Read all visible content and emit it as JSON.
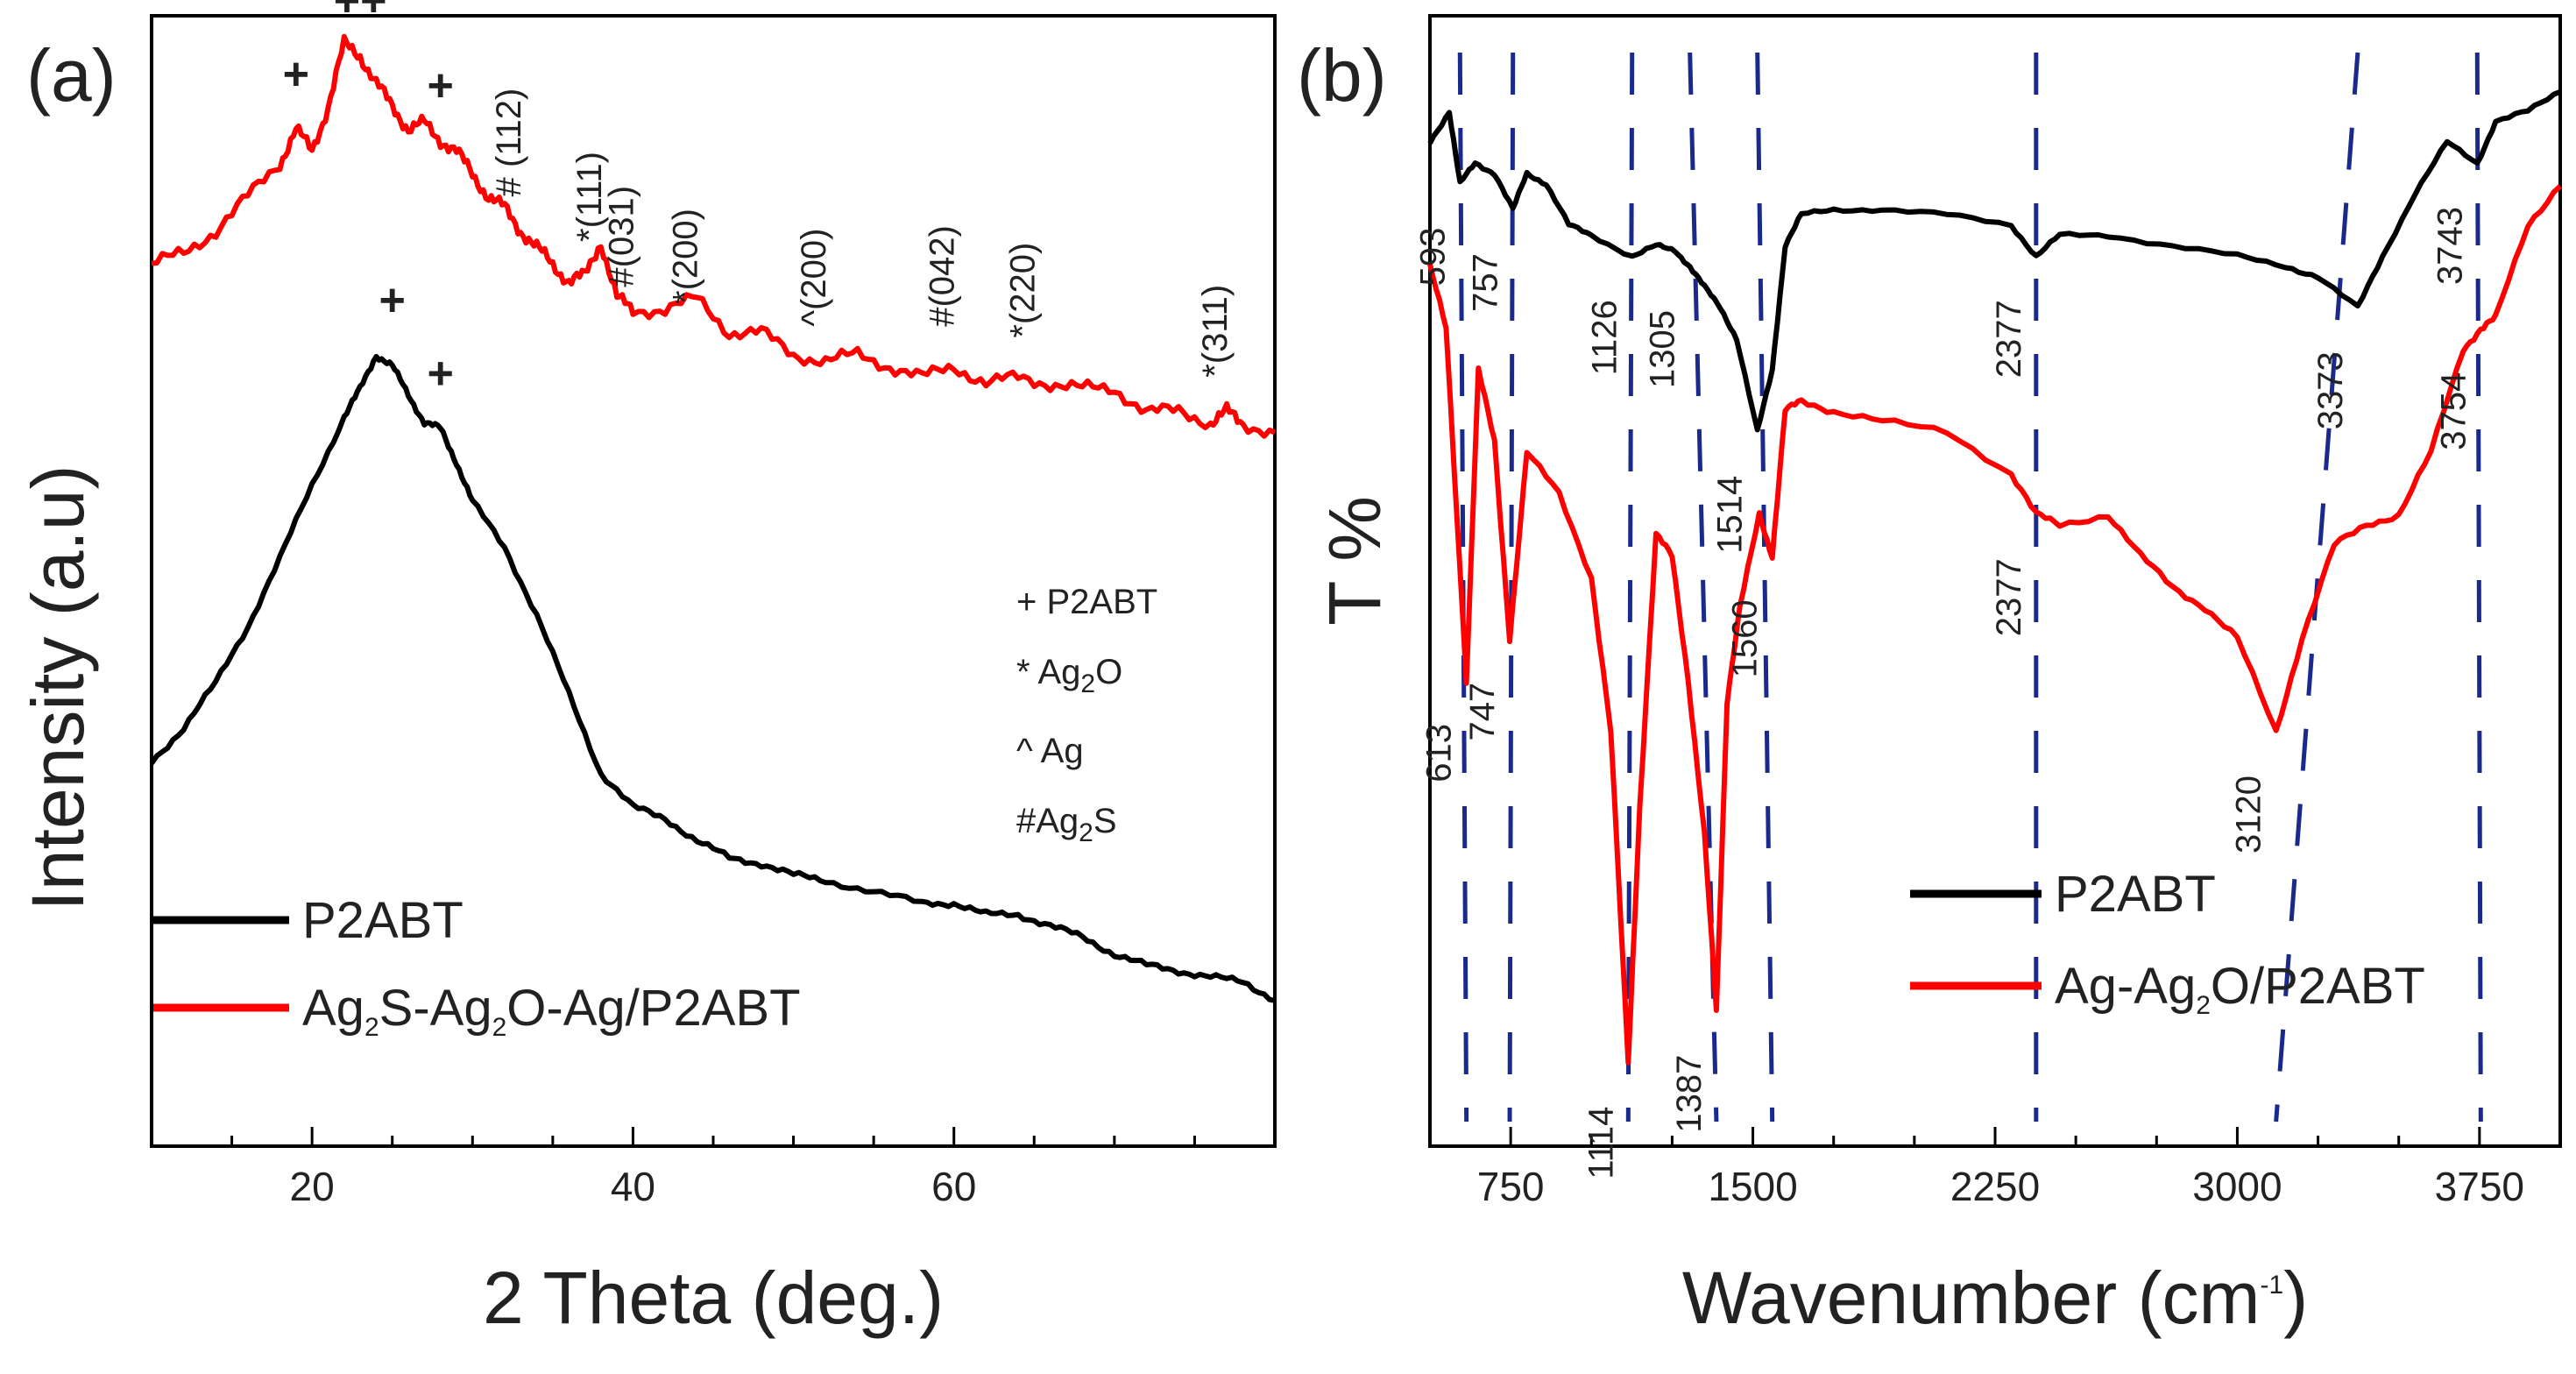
{
  "panels": [
    {
      "id": "a",
      "panel_label": "(a)",
      "chart_data": {
        "type": "line",
        "title": "",
        "xlabel": "2 Theta (deg.)",
        "ylabel": "Intensity (a.u)",
        "xlim": [
          10,
          80
        ],
        "ylim": [
          0,
          1
        ],
        "x_ticks": [
          20,
          40,
          60
        ],
        "y_ticks_visible": false,
        "grid": false,
        "legend_position": "bottom-left",
        "series": [
          {
            "name": "P2ABT",
            "color": "#000000",
            "x": [
              10,
              12,
              14,
              16,
              18,
              20,
              22,
              23,
              24,
              25,
              26,
              27,
              28,
              29,
              30,
              32,
              34,
              36,
              38,
              40,
              42,
              44,
              46,
              48,
              50,
              52,
              55,
              58,
              60,
              62,
              64,
              66,
              68,
              70,
              72,
              74,
              76,
              78,
              80
            ],
            "y": [
              0.34,
              0.37,
              0.41,
              0.46,
              0.52,
              0.585,
              0.645,
              0.67,
              0.7,
              0.69,
              0.665,
              0.64,
              0.635,
              0.605,
              0.57,
              0.53,
              0.47,
              0.4,
              0.33,
              0.3,
              0.29,
              0.27,
              0.255,
              0.25,
              0.24,
              0.235,
              0.225,
              0.215,
              0.215,
              0.205,
              0.205,
              0.195,
              0.185,
              0.17,
              0.16,
              0.155,
              0.15,
              0.145,
              0.13
            ],
            "legend_label": "P2ABT"
          },
          {
            "name": "Ag2S-Ag2O-Ag/P2ABT",
            "color": "#ff0000",
            "x": [
              10,
              12,
              14,
              16,
              18,
              19,
              20,
              21,
              22,
              23,
              24,
              25,
              26,
              27,
              28,
              29,
              30,
              31,
              32,
              33,
              34,
              35,
              36,
              37,
              38,
              39,
              40,
              42,
              44,
              46,
              48,
              50,
              52,
              54,
              56,
              58,
              60,
              62,
              64,
              66,
              68,
              70,
              72,
              74,
              76,
              77,
              78,
              80
            ],
            "y": [
              0.78,
              0.79,
              0.81,
              0.84,
              0.87,
              0.9,
              0.88,
              0.92,
              0.975,
              0.965,
              0.94,
              0.92,
              0.9,
              0.905,
              0.89,
              0.88,
              0.86,
              0.84,
              0.83,
              0.81,
              0.795,
              0.78,
              0.765,
              0.77,
              0.8,
              0.75,
              0.74,
              0.74,
              0.75,
              0.72,
              0.72,
              0.7,
              0.695,
              0.7,
              0.69,
              0.68,
              0.69,
              0.675,
              0.68,
              0.675,
              0.67,
              0.67,
              0.65,
              0.65,
              0.64,
              0.65,
              0.64,
              0.63
            ],
            "legend_label": "Ag2S-Ag2O-Ag/P2ABT"
          }
        ],
        "annotations": [
          {
            "text": "+",
            "x": 19,
            "y": 0.935
          },
          {
            "text": "++",
            "x": 23,
            "y": 1.0
          },
          {
            "text": "+",
            "x": 28,
            "y": 0.925
          },
          {
            "text": "+",
            "x": 25,
            "y": 0.735
          },
          {
            "text": "+",
            "x": 28,
            "y": 0.67
          },
          {
            "text": "# (112)",
            "x": 33,
            "y": 0.84
          },
          {
            "text": "*(111)",
            "x": 38,
            "y": 0.8
          },
          {
            "text": "#(031)",
            "x": 40,
            "y": 0.76
          },
          {
            "text": "*(200)",
            "x": 44,
            "y": 0.745
          },
          {
            "text": "^(200)",
            "x": 52,
            "y": 0.725
          },
          {
            "text": "#(042)",
            "x": 60,
            "y": 0.725
          },
          {
            "text": "*(220)",
            "x": 65,
            "y": 0.715
          },
          {
            "text": "*(311)",
            "x": 77,
            "y": 0.68
          }
        ],
        "key": [
          "+ P2ABT",
          "* Ag2O",
          "^ Ag",
          "#Ag2S"
        ]
      }
    },
    {
      "id": "b",
      "panel_label": "(b)",
      "chart_data": {
        "type": "line",
        "title": "",
        "xlabel": "Wavenumber (cm-1)",
        "ylabel": "T %",
        "xlim": [
          500,
          4000
        ],
        "ylim": [
          0,
          1
        ],
        "x_ticks": [
          750,
          1500,
          2250,
          3000,
          3750
        ],
        "y_ticks_visible": false,
        "grid": false,
        "legend_position": "bottom-right",
        "series": [
          {
            "name": "P2ABT",
            "color": "#000000",
            "x": [
              500,
              560,
              593,
              640,
              700,
              757,
              800,
              860,
              930,
              1000,
              1126,
              1200,
              1260,
              1305,
              1350,
              1400,
              1450,
              1514,
              1560,
              1600,
              1650,
              1750,
              1900,
              2100,
              2300,
              2377,
              2450,
              2600,
              2800,
              3000,
              3150,
              3250,
              3373,
              3450,
              3550,
              3650,
              3743,
              3800,
              3900,
              4000
            ],
            "y": [
              0.92,
              0.95,
              0.88,
              0.9,
              0.89,
              0.855,
              0.89,
              0.88,
              0.84,
              0.83,
              0.81,
              0.82,
              0.815,
              0.8,
              0.78,
              0.76,
              0.73,
              0.64,
              0.7,
              0.82,
              0.85,
              0.855,
              0.855,
              0.85,
              0.84,
              0.81,
              0.83,
              0.83,
              0.82,
              0.81,
              0.8,
              0.79,
              0.76,
              0.81,
              0.87,
              0.92,
              0.9,
              0.94,
              0.95,
              0.97
            ],
            "legend_label": "P2ABT",
            "peaks": [
              {
                "wavenumber": 593,
                "label": "593"
              },
              {
                "wavenumber": 757,
                "label": "757"
              },
              {
                "wavenumber": 1126,
                "label": "1126"
              },
              {
                "wavenumber": 1305,
                "label": "1305"
              },
              {
                "wavenumber": 1514,
                "label": "1514"
              },
              {
                "wavenumber": 2377,
                "label": "2377"
              },
              {
                "wavenumber": 3373,
                "label": "3373"
              },
              {
                "wavenumber": 3743,
                "label": "3743"
              }
            ]
          },
          {
            "name": "Ag-Ag2O/P2ABT",
            "color": "#ff0000",
            "x": [
              500,
              550,
              613,
              650,
              700,
              747,
              800,
              900,
              1000,
              1060,
              1114,
              1150,
              1200,
              1250,
              1300,
              1350,
              1387,
              1420,
              1460,
              1520,
              1560,
              1600,
              1650,
              1750,
              1900,
              2100,
              2300,
              2377,
              2450,
              2600,
              2700,
              2800,
              2900,
              3000,
              3120,
              3200,
              3300,
              3400,
              3500,
              3600,
              3700,
              3754,
              3800,
              3900,
              4000
            ],
            "y": [
              0.8,
              0.74,
              0.4,
              0.7,
              0.63,
              0.44,
              0.62,
              0.58,
              0.5,
              0.35,
              0.03,
              0.28,
              0.54,
              0.52,
              0.4,
              0.25,
              0.08,
              0.38,
              0.47,
              0.56,
              0.52,
              0.66,
              0.67,
              0.66,
              0.65,
              0.64,
              0.6,
              0.56,
              0.55,
              0.56,
              0.52,
              0.49,
              0.47,
              0.44,
              0.35,
              0.44,
              0.53,
              0.55,
              0.56,
              0.62,
              0.72,
              0.74,
              0.75,
              0.84,
              0.88
            ],
            "legend_label": "Ag-Ag2O/P2ABT",
            "peaks": [
              {
                "wavenumber": 613,
                "label": "613"
              },
              {
                "wavenumber": 747,
                "label": "747"
              },
              {
                "wavenumber": 1114,
                "label": "1114"
              },
              {
                "wavenumber": 1387,
                "label": "1387"
              },
              {
                "wavenumber": 1560,
                "label": "1560"
              },
              {
                "wavenumber": 2377,
                "label": "2377"
              },
              {
                "wavenumber": 3120,
                "label": "3120"
              },
              {
                "wavenumber": 3754,
                "label": "3754"
              }
            ]
          }
        ],
        "guide_line_color": "#1a2a8c"
      }
    }
  ]
}
